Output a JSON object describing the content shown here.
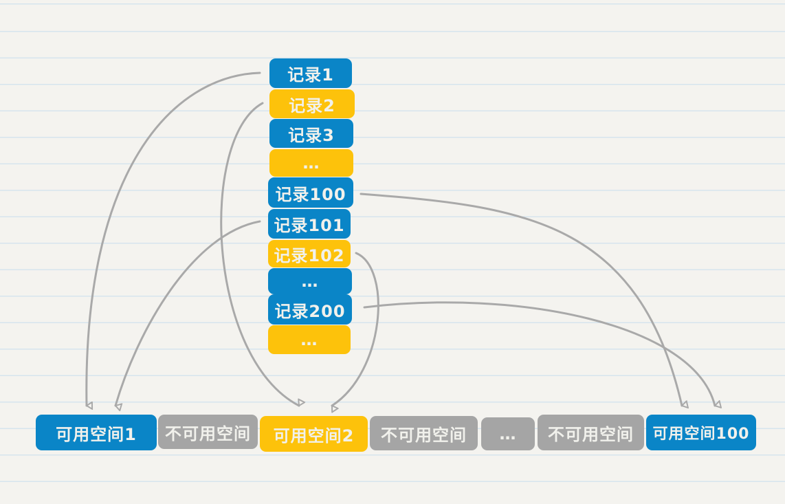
{
  "colors": {
    "blue": "#0a85c7",
    "yellow": "#fdc20b",
    "gray": "#a5a5a5",
    "arrow": "#a9a9a9"
  },
  "records": [
    "记录1",
    "记录2",
    "记录3",
    "…",
    "记录100",
    "记录101",
    "记录102",
    "…",
    "记录200",
    "…"
  ],
  "spaces": [
    "可用空间1",
    "不可用空间",
    "可用空间2",
    "不可用空间",
    "…",
    "不可用空间",
    "可用空间100"
  ]
}
